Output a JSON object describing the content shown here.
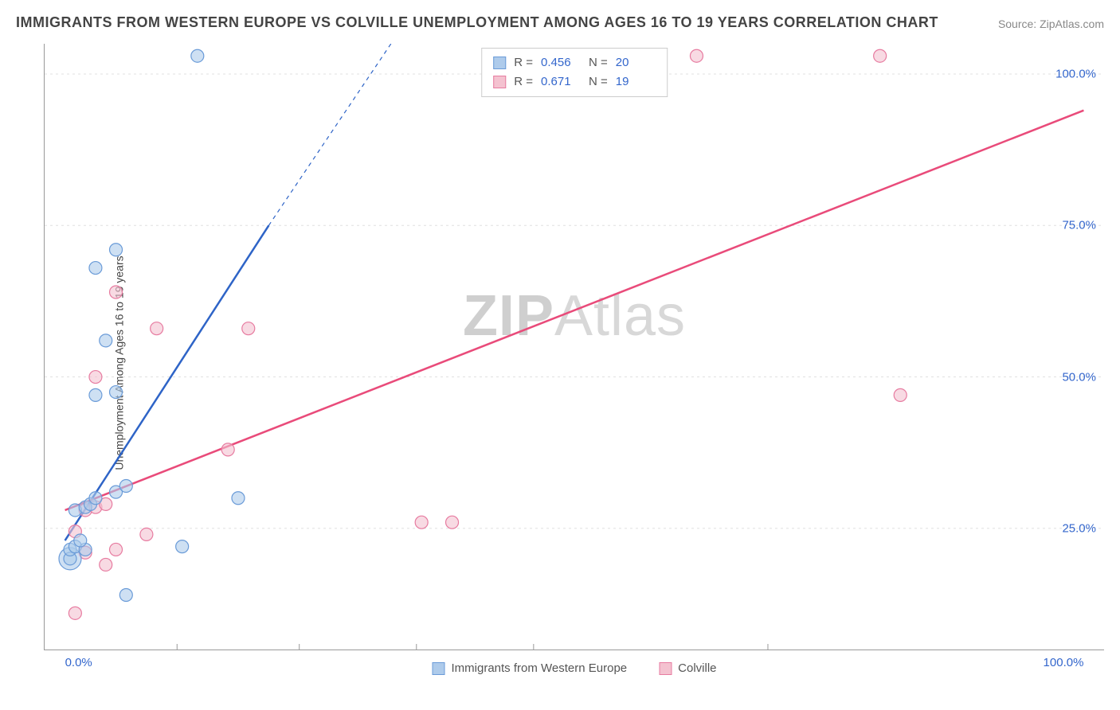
{
  "title": "IMMIGRANTS FROM WESTERN EUROPE VS COLVILLE UNEMPLOYMENT AMONG AGES 16 TO 19 YEARS CORRELATION CHART",
  "source": "Source: ZipAtlas.com",
  "y_axis_label": "Unemployment Among Ages 16 to 19 years",
  "watermark_a": "ZIP",
  "watermark_b": "Atlas",
  "legend_top": {
    "series1": {
      "r_label": "R =",
      "r_value": "0.456",
      "n_label": "N =",
      "n_value": "20"
    },
    "series2": {
      "r_label": "R =",
      "r_value": "0.671",
      "n_label": "N =",
      "n_value": "19"
    }
  },
  "x_legend": {
    "item1": "Immigrants from Western Europe",
    "item2": "Colville"
  },
  "chart": {
    "type": "scatter",
    "xlim": [
      -2,
      102
    ],
    "ylim": [
      5,
      105
    ],
    "y_ticks": [
      25,
      50,
      75,
      100
    ],
    "y_tick_labels": [
      "25.0%",
      "50.0%",
      "75.0%",
      "100.0%"
    ],
    "x_ticks": [
      0,
      100
    ],
    "x_tick_labels": [
      "0.0%",
      "100.0%"
    ],
    "x_minor_ticks": [
      11,
      23,
      34.5,
      46,
      69
    ],
    "grid_color": "#e0e0e0",
    "background_color": "#ffffff",
    "series": [
      {
        "name": "Immigrants from Western Europe",
        "color_fill": "#aecbeb",
        "color_stroke": "#6a9bd8",
        "marker_radius": 8,
        "fill_opacity": 0.6,
        "trend": {
          "x1": 0,
          "y1": 23,
          "x2": 20,
          "y2": 75,
          "dash_x2": 32,
          "dash_y2": 105,
          "color": "#2e64c7",
          "width": 2.5
        },
        "points": [
          [
            0.5,
            20
          ],
          [
            0.5,
            21.5
          ],
          [
            1,
            22
          ],
          [
            2,
            21.5
          ],
          [
            1.5,
            23
          ],
          [
            1,
            28
          ],
          [
            2,
            28.5
          ],
          [
            2.5,
            29
          ],
          [
            3,
            30
          ],
          [
            5,
            31
          ],
          [
            6,
            32
          ],
          [
            11.5,
            22
          ],
          [
            17,
            30
          ],
          [
            3,
            47
          ],
          [
            5,
            47.5
          ],
          [
            4,
            56
          ],
          [
            6,
            14
          ],
          [
            3,
            68
          ],
          [
            5,
            71
          ],
          [
            13,
            103
          ]
        ],
        "large_points": [
          [
            0.5,
            20,
            14
          ]
        ]
      },
      {
        "name": "Colville",
        "color_fill": "#f4c2d0",
        "color_stroke": "#e77ba0",
        "marker_radius": 8,
        "fill_opacity": 0.6,
        "trend": {
          "x1": 0,
          "y1": 28,
          "x2": 100,
          "y2": 94,
          "color": "#e94b7a",
          "width": 2.5
        },
        "points": [
          [
            1,
            11
          ],
          [
            4,
            19
          ],
          [
            2,
            21
          ],
          [
            5,
            21.5
          ],
          [
            8,
            24
          ],
          [
            1,
            24.5
          ],
          [
            2,
            28
          ],
          [
            3,
            28.5
          ],
          [
            4,
            29
          ],
          [
            3,
            50
          ],
          [
            9,
            58
          ],
          [
            18,
            58
          ],
          [
            5,
            64
          ],
          [
            16,
            38
          ],
          [
            35,
            26
          ],
          [
            38,
            26
          ],
          [
            62,
            103
          ],
          [
            80,
            103
          ],
          [
            82,
            47
          ]
        ]
      }
    ]
  }
}
